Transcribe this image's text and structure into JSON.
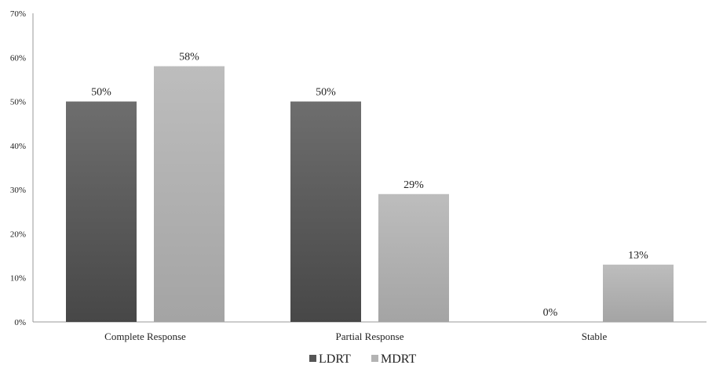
{
  "chart_data": {
    "type": "bar",
    "title": "",
    "xlabel": "",
    "ylabel": "",
    "categories": [
      "Complete Response",
      "Partial Response",
      "Stable"
    ],
    "series": [
      {
        "name": "LDRT",
        "values": [
          50,
          50,
          0
        ],
        "labels": [
          "50%",
          "50%",
          "0%"
        ],
        "color": "#555555"
      },
      {
        "name": "MDRT",
        "values": [
          58,
          29,
          13
        ],
        "labels": [
          "58%",
          "29%",
          "13%"
        ],
        "color": "#b3b3b3"
      }
    ],
    "ylim": [
      0,
      70
    ],
    "yticks": [
      0,
      10,
      20,
      30,
      40,
      50,
      60,
      70
    ],
    "ytick_labels": [
      "0%",
      "10%",
      "20%",
      "30%",
      "40%",
      "50%",
      "60%",
      "70%"
    ],
    "grid": false,
    "legend_position": "bottom"
  }
}
